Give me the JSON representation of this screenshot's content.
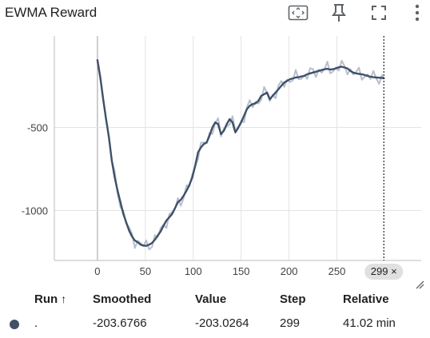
{
  "card": {
    "title": "EWMA Reward",
    "toolbar": {
      "fit_label": "Fit domain to data",
      "pin_label": "Pin card",
      "fullscreen_label": "Toggle fullscreen",
      "more_label": "More options"
    }
  },
  "chart_data": {
    "type": "line",
    "title": "EWMA Reward",
    "xlabel": "",
    "ylabel": "",
    "xlim": [
      -45,
      338
    ],
    "ylim": [
      -1300,
      50
    ],
    "x_ticks": [
      0,
      50,
      100,
      150,
      200,
      250
    ],
    "x_tick_labels": [
      "0",
      "50",
      "100",
      "150",
      "200",
      "250"
    ],
    "y_ticks": [
      -500,
      -1000
    ],
    "y_tick_labels": [
      "-500",
      "-1000"
    ],
    "grid": true,
    "series": [
      {
        "color": "#3f5068",
        "raw_color": "#a9b4c6",
        "points": [
          [
            0,
            -95
          ],
          [
            3,
            -200
          ],
          [
            6,
            -330
          ],
          [
            9,
            -450
          ],
          [
            12,
            -560
          ],
          [
            15,
            -700
          ],
          [
            18,
            -800
          ],
          [
            21,
            -880
          ],
          [
            24,
            -950
          ],
          [
            27,
            -1020
          ],
          [
            30,
            -1070
          ],
          [
            33,
            -1120
          ],
          [
            36,
            -1155
          ],
          [
            39,
            -1180
          ],
          [
            42,
            -1190
          ],
          [
            45,
            -1205
          ],
          [
            48,
            -1210
          ],
          [
            51,
            -1212
          ],
          [
            54,
            -1205
          ],
          [
            57,
            -1195
          ],
          [
            60,
            -1175
          ],
          [
            63,
            -1150
          ],
          [
            66,
            -1125
          ],
          [
            69,
            -1090
          ],
          [
            72,
            -1060
          ],
          [
            75,
            -1040
          ],
          [
            78,
            -1020
          ],
          [
            81,
            -985
          ],
          [
            84,
            -950
          ],
          [
            87,
            -935
          ],
          [
            90,
            -910
          ],
          [
            93,
            -880
          ],
          [
            96,
            -845
          ],
          [
            99,
            -800
          ],
          [
            102,
            -730
          ],
          [
            105,
            -650
          ],
          [
            108,
            -620
          ],
          [
            111,
            -600
          ],
          [
            114,
            -590
          ],
          [
            117,
            -550
          ],
          [
            120,
            -500
          ],
          [
            123,
            -470
          ],
          [
            126,
            -480
          ],
          [
            129,
            -540
          ],
          [
            132,
            -520
          ],
          [
            135,
            -480
          ],
          [
            138,
            -450
          ],
          [
            141,
            -470
          ],
          [
            144,
            -530
          ],
          [
            147,
            -500
          ],
          [
            150,
            -470
          ],
          [
            153,
            -430
          ],
          [
            156,
            -390
          ],
          [
            159,
            -370
          ],
          [
            162,
            -360
          ],
          [
            165,
            -355
          ],
          [
            168,
            -340
          ],
          [
            171,
            -310
          ],
          [
            174,
            -300
          ],
          [
            177,
            -290
          ],
          [
            180,
            -330
          ],
          [
            183,
            -310
          ],
          [
            186,
            -290
          ],
          [
            189,
            -270
          ],
          [
            192,
            -250
          ],
          [
            195,
            -230
          ],
          [
            198,
            -220
          ],
          [
            201,
            -210
          ],
          [
            204,
            -205
          ],
          [
            207,
            -200
          ],
          [
            210,
            -198
          ],
          [
            213,
            -193
          ],
          [
            216,
            -190
          ],
          [
            219,
            -180
          ],
          [
            222,
            -175
          ],
          [
            225,
            -170
          ],
          [
            228,
            -165
          ],
          [
            231,
            -160
          ],
          [
            234,
            -155
          ],
          [
            237,
            -150
          ],
          [
            240,
            -148
          ],
          [
            243,
            -152
          ],
          [
            246,
            -150
          ],
          [
            249,
            -145
          ],
          [
            252,
            -138
          ],
          [
            255,
            -135
          ],
          [
            258,
            -140
          ],
          [
            261,
            -145
          ],
          [
            264,
            -160
          ],
          [
            267,
            -170
          ],
          [
            270,
            -175
          ],
          [
            273,
            -178
          ],
          [
            276,
            -180
          ],
          [
            279,
            -185
          ],
          [
            282,
            -190
          ],
          [
            285,
            -195
          ],
          [
            288,
            -198
          ],
          [
            291,
            -200
          ],
          [
            294,
            -201
          ],
          [
            297,
            -202
          ],
          [
            299,
            -203
          ]
        ]
      }
    ],
    "hover_step": 299,
    "hover_label": "299 ×"
  },
  "run_table": {
    "headers": {
      "run": "Run",
      "sort_arrow": "↑",
      "smoothed": "Smoothed",
      "value": "Value",
      "step": "Step",
      "relative": "Relative"
    },
    "rows": [
      {
        "color": "#3f5068",
        "run": ".",
        "smoothed": "-203.6766",
        "value": "-203.0264",
        "step": "299",
        "relative": "41.02 min"
      }
    ]
  }
}
